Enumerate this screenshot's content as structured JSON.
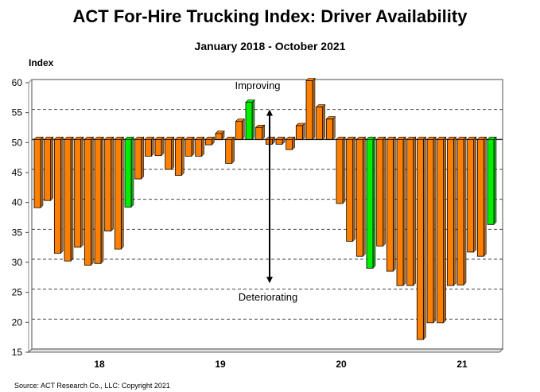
{
  "chart_data": {
    "type": "bar",
    "title": "ACT For-Hire Trucking Index: Driver Availability",
    "subtitle": "January 2018 - October 2021",
    "ylabel": "Index",
    "xlabel": "",
    "ylim": [
      15,
      60
    ],
    "yticks": [
      15,
      20,
      25,
      30,
      35,
      40,
      45,
      50,
      55,
      60
    ],
    "xtick_labels": [
      "18",
      "19",
      "20",
      "21"
    ],
    "baseline": 50,
    "grid": true,
    "annotations": {
      "top": "Improving",
      "bottom": "Deteriorating"
    },
    "source": "Source: ACT Research Co., LLC: Copyright  2021",
    "colors": {
      "default": "#ff8000",
      "highlight": "#00ee00"
    },
    "categories": [
      "Jan 2018",
      "Feb 2018",
      "Mar 2018",
      "Apr 2018",
      "May 2018",
      "Jun 2018",
      "Jul 2018",
      "Aug 2018",
      "Sep 2018",
      "Oct 2018",
      "Nov 2018",
      "Dec 2018",
      "Jan 2019",
      "Feb 2019",
      "Mar 2019",
      "Apr 2019",
      "May 2019",
      "Jun 2019",
      "Jul 2019",
      "Aug 2019",
      "Sep 2019",
      "Oct 2019",
      "Nov 2019",
      "Dec 2019",
      "Jan 2020",
      "Feb 2020",
      "Mar 2020",
      "Apr 2020",
      "May 2020",
      "Jun 2020",
      "Jul 2020",
      "Aug 2020",
      "Sep 2020",
      "Oct 2020",
      "Nov 2020",
      "Dec 2020",
      "Jan 2021",
      "Feb 2021",
      "Mar 2021",
      "Apr 2021",
      "May 2021",
      "Jun 2021",
      "Jul 2021",
      "Aug 2021",
      "Sep 2021",
      "Oct 2021"
    ],
    "values": [
      38.6,
      39.8,
      31.0,
      29.7,
      32.0,
      29.0,
      29.3,
      34.7,
      31.7,
      38.7,
      43.4,
      47.2,
      47.3,
      45.0,
      44.0,
      47.2,
      47.2,
      49.1,
      51.0,
      46.0,
      53.0,
      56.2,
      52.0,
      49.2,
      49.2,
      48.3,
      52.3,
      59.8,
      55.4,
      53.4,
      39.3,
      33.0,
      30.5,
      28.5,
      32.2,
      28.0,
      25.6,
      25.6,
      16.6,
      19.4,
      19.4,
      25.6,
      25.7,
      31.2,
      30.5,
      35.8
    ],
    "highlighted": [
      "Oct 2018",
      "Oct 2019",
      "Oct 2020",
      "Oct 2021"
    ]
  }
}
